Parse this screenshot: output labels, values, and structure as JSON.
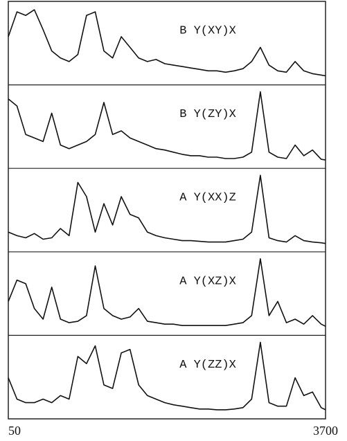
{
  "chart_data": {
    "type": "line",
    "x": [
      50,
      150,
      250,
      350,
      450,
      550,
      650,
      750,
      850,
      950,
      1050,
      1150,
      1250,
      1350,
      1450,
      1550,
      1650,
      1750,
      1850,
      1950,
      2050,
      2150,
      2250,
      2350,
      2450,
      2550,
      2650,
      2750,
      2850,
      2950,
      3050,
      3150,
      3250,
      3350,
      3450,
      3550,
      3650,
      3700
    ],
    "xlim": [
      50,
      3700
    ],
    "xticks": [
      50,
      3700
    ],
    "ylim": [
      0,
      100
    ],
    "series": [
      {
        "name": "B Y(XY)X",
        "color": "#111111",
        "values": [
          60,
          95,
          90,
          98,
          70,
          40,
          30,
          25,
          35,
          90,
          95,
          40,
          30,
          60,
          45,
          30,
          25,
          28,
          22,
          20,
          18,
          16,
          14,
          12,
          12,
          10,
          12,
          15,
          25,
          45,
          20,
          12,
          10,
          25,
          12,
          8,
          6,
          5
        ]
      },
      {
        "name": "B Y(ZY)X",
        "color": "#111111",
        "values": [
          90,
          80,
          40,
          35,
          30,
          70,
          25,
          20,
          25,
          30,
          40,
          85,
          40,
          45,
          35,
          30,
          25,
          20,
          18,
          15,
          12,
          10,
          10,
          8,
          8,
          6,
          6,
          8,
          15,
          100,
          15,
          8,
          6,
          25,
          10,
          18,
          5,
          4
        ]
      },
      {
        "name": "A Y(XX)Z",
        "color": "#111111",
        "values": [
          20,
          15,
          12,
          18,
          10,
          12,
          25,
          15,
          90,
          70,
          20,
          60,
          30,
          70,
          45,
          40,
          20,
          15,
          12,
          10,
          8,
          8,
          7,
          6,
          6,
          6,
          8,
          10,
          20,
          100,
          12,
          8,
          6,
          15,
          8,
          6,
          5,
          4
        ]
      },
      {
        "name": "A Y(XZ)X",
        "color": "#111111",
        "values": [
          40,
          70,
          65,
          30,
          15,
          60,
          15,
          10,
          12,
          20,
          90,
          30,
          20,
          15,
          18,
          30,
          12,
          10,
          8,
          8,
          6,
          6,
          6,
          6,
          6,
          6,
          8,
          10,
          20,
          100,
          20,
          40,
          10,
          15,
          8,
          20,
          8,
          5
        ]
      },
      {
        "name": "A Y(ZZ)X",
        "color": "#111111",
        "values": [
          50,
          20,
          15,
          15,
          20,
          15,
          25,
          20,
          80,
          70,
          95,
          40,
          35,
          85,
          90,
          40,
          25,
          20,
          15,
          12,
          10,
          8,
          6,
          6,
          5,
          5,
          6,
          8,
          20,
          100,
          15,
          10,
          10,
          50,
          25,
          30,
          8,
          5
        ]
      }
    ]
  }
}
